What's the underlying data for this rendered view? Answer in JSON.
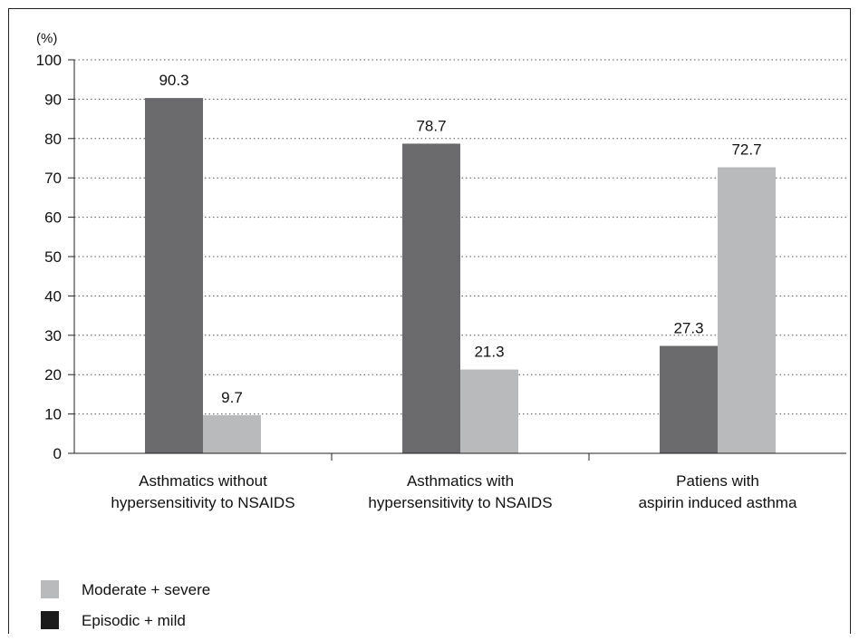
{
  "chart_data": {
    "type": "bar",
    "unit_label": "(%)",
    "ylim": [
      0,
      100
    ],
    "y_ticks": [
      0,
      10,
      20,
      30,
      40,
      50,
      60,
      70,
      80,
      90,
      100
    ],
    "grid": "horizontal dotted",
    "categories": [
      [
        "Asthmatics without",
        "hypersensitivity to NSAIDS"
      ],
      [
        "Asthmatics with",
        "hypersensitivity to NSAIDS"
      ],
      [
        "Patiens with",
        "aspirin induced asthma"
      ]
    ],
    "series": [
      {
        "name": "Episodic + mild",
        "color": "#6b6b6d",
        "values": [
          90.3,
          78.7,
          27.3
        ],
        "labels": [
          "90.3",
          "78.7",
          "27.3"
        ]
      },
      {
        "name": "Moderate + severe",
        "color": "#b9babc",
        "values": [
          9.7,
          21.3,
          72.7
        ],
        "labels": [
          "9.7",
          "21.3",
          "72.7"
        ]
      }
    ],
    "legend": {
      "placement": "bottom-left",
      "entries": [
        {
          "label": "Moderate + severe",
          "color": "#b9babc"
        },
        {
          "label": "Episodic + mild",
          "color": "#1c1c1c"
        }
      ]
    }
  }
}
